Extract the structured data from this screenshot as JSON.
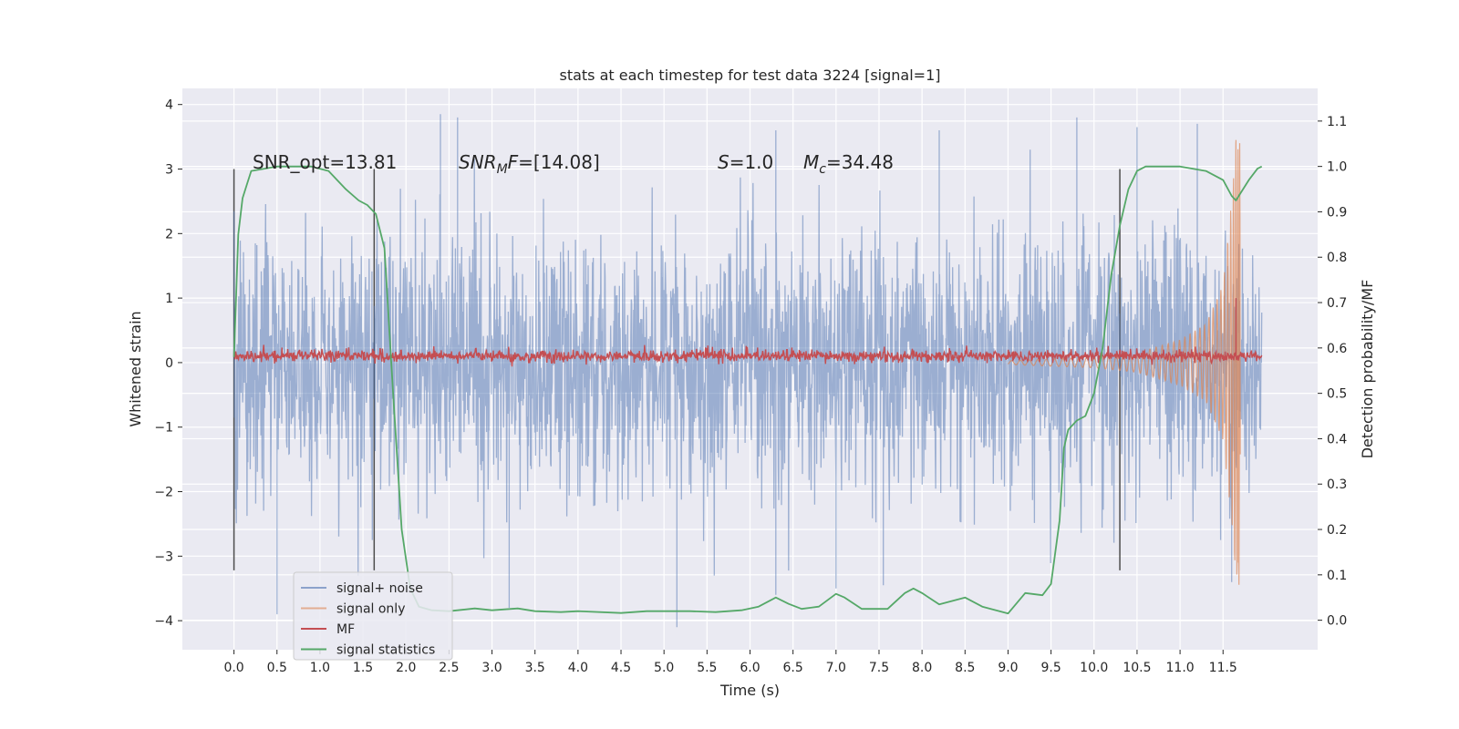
{
  "chart_data": {
    "type": "line",
    "title": "stats at each timestep for test data 3224 [signal=1]",
    "xlabel": "Time (s)",
    "ylabel": "Whitened strain",
    "y2label": "Detection probability/MF",
    "xlim": [
      -0.6,
      12.6
    ],
    "ylim": [
      -4.45,
      4.25
    ],
    "y2lim": [
      -0.065,
      1.172
    ],
    "x_ticks": [
      0.0,
      0.5,
      1.0,
      1.5,
      2.0,
      2.5,
      3.0,
      3.5,
      4.0,
      4.5,
      5.0,
      5.5,
      6.0,
      6.5,
      7.0,
      7.5,
      8.0,
      8.5,
      9.0,
      9.5,
      10.0,
      10.5,
      11.0,
      11.5
    ],
    "x_tick_labels": [
      "0.0",
      "0.5",
      "1.0",
      "1.5",
      "2.0",
      "2.5",
      "3.0",
      "3.5",
      "4.0",
      "4.5",
      "5.0",
      "5.5",
      "6.0",
      "6.5",
      "7.0",
      "7.5",
      "8.0",
      "8.5",
      "9.0",
      "9.5",
      "10.0",
      "10.5",
      "11.0",
      "11.5"
    ],
    "y_ticks": [
      -4,
      -3,
      -2,
      -1,
      0,
      1,
      2,
      3,
      4
    ],
    "y_tick_labels": [
      "−4",
      "−3",
      "−2",
      "−1",
      "0",
      "1",
      "2",
      "3",
      "4"
    ],
    "y2_ticks": [
      0.0,
      0.1,
      0.2,
      0.3,
      0.4,
      0.5,
      0.6,
      0.7,
      0.8,
      0.9,
      1.0,
      1.1
    ],
    "y2_tick_labels": [
      "0.0",
      "0.1",
      "0.2",
      "0.3",
      "0.4",
      "0.5",
      "0.6",
      "0.7",
      "0.8",
      "0.9",
      "1.0",
      "1.1"
    ],
    "grid": true,
    "legend_position": "lower-left",
    "annotations": {
      "snr_opt": "SNR_opt=13.81",
      "snr_mf_name": "SNR",
      "snr_mf_sub": "M",
      "snr_mf_after": "F=[14.08]",
      "s_name": "S",
      "s_value": "=1.0",
      "mc_name": "M",
      "mc_sub": "c",
      "mc_value": "=34.48"
    },
    "vertical_markers_x": [
      0.0,
      1.63,
      10.3
    ],
    "vertical_markers_range": [
      -3.22,
      3.0
    ],
    "series": [
      {
        "name": "signal+ noise",
        "color": "#4c72b0",
        "axis": "left",
        "description": "whitened noisy strain, dense, roughly within -2.5..2.5 with spikes to about +-3.8",
        "x_range": [
          0.0,
          11.95
        ],
        "envelope_upper": [
          [
            0.0,
            2.2
          ],
          [
            0.5,
            2.3
          ],
          [
            1.0,
            2.4
          ],
          [
            2.0,
            2.5
          ],
          [
            4.0,
            2.4
          ],
          [
            6.0,
            2.5
          ],
          [
            8.0,
            2.4
          ],
          [
            10.0,
            2.5
          ],
          [
            11.95,
            2.5
          ]
        ],
        "spikes": [
          [
            0.5,
            -3.9
          ],
          [
            2.4,
            3.85
          ],
          [
            2.6,
            3.8
          ],
          [
            3.2,
            -3.8
          ],
          [
            5.15,
            -4.1
          ],
          [
            6.3,
            -3.6
          ],
          [
            6.3,
            3.6
          ],
          [
            7.0,
            -3.5
          ],
          [
            7.55,
            -3.45
          ],
          [
            8.2,
            3.6
          ],
          [
            9.8,
            3.8
          ],
          [
            10.5,
            3.65
          ],
          [
            11.2,
            3.7
          ],
          [
            11.6,
            -3.4
          ]
        ]
      },
      {
        "name": "signal only",
        "color": "#dd8452",
        "axis": "left",
        "description": "chirp signal growing near the merger",
        "points": [
          [
            9.0,
            0.03
          ],
          [
            10.0,
            0.08
          ],
          [
            10.5,
            0.15
          ],
          [
            11.0,
            0.35
          ],
          [
            11.3,
            0.6
          ],
          [
            11.5,
            1.2
          ],
          [
            11.6,
            2.5
          ],
          [
            11.65,
            3.45
          ],
          [
            11.68,
            -3.1
          ],
          [
            11.72,
            0.0
          ]
        ]
      },
      {
        "name": "MF",
        "color": "#c44e52",
        "axis": "left",
        "description": "matched filter output, around 0.1 with small fluctuations and a spike of about 1.0 near 11.65",
        "baseline": 0.1,
        "x_range": [
          0.0,
          11.95
        ],
        "spike": [
          11.65,
          1.0
        ]
      },
      {
        "name": "signal statistics",
        "color": "#55a868",
        "axis": "right",
        "points": [
          [
            0.0,
            0.58
          ],
          [
            0.05,
            0.85
          ],
          [
            0.1,
            0.93
          ],
          [
            0.15,
            0.96
          ],
          [
            0.2,
            0.99
          ],
          [
            0.5,
            1.0
          ],
          [
            0.9,
            1.0
          ],
          [
            1.1,
            0.99
          ],
          [
            1.3,
            0.95
          ],
          [
            1.45,
            0.925
          ],
          [
            1.55,
            0.915
          ],
          [
            1.65,
            0.895
          ],
          [
            1.75,
            0.82
          ],
          [
            1.85,
            0.5
          ],
          [
            1.95,
            0.2
          ],
          [
            2.05,
            0.07
          ],
          [
            2.15,
            0.03
          ],
          [
            2.3,
            0.022
          ],
          [
            2.5,
            0.02
          ],
          [
            2.8,
            0.026
          ],
          [
            3.0,
            0.022
          ],
          [
            3.3,
            0.026
          ],
          [
            3.5,
            0.02
          ],
          [
            3.8,
            0.018
          ],
          [
            4.0,
            0.02
          ],
          [
            4.5,
            0.016
          ],
          [
            4.8,
            0.02
          ],
          [
            5.0,
            0.02
          ],
          [
            5.3,
            0.02
          ],
          [
            5.6,
            0.018
          ],
          [
            5.9,
            0.022
          ],
          [
            6.1,
            0.03
          ],
          [
            6.3,
            0.05
          ],
          [
            6.45,
            0.036
          ],
          [
            6.6,
            0.025
          ],
          [
            6.8,
            0.03
          ],
          [
            7.0,
            0.058
          ],
          [
            7.1,
            0.05
          ],
          [
            7.3,
            0.025
          ],
          [
            7.6,
            0.025
          ],
          [
            7.8,
            0.06
          ],
          [
            7.9,
            0.07
          ],
          [
            8.0,
            0.06
          ],
          [
            8.2,
            0.035
          ],
          [
            8.5,
            0.05
          ],
          [
            8.7,
            0.03
          ],
          [
            9.0,
            0.015
          ],
          [
            9.2,
            0.06
          ],
          [
            9.4,
            0.055
          ],
          [
            9.5,
            0.08
          ],
          [
            9.6,
            0.22
          ],
          [
            9.65,
            0.38
          ],
          [
            9.7,
            0.42
          ],
          [
            9.8,
            0.44
          ],
          [
            9.9,
            0.45
          ],
          [
            10.0,
            0.5
          ],
          [
            10.1,
            0.6
          ],
          [
            10.2,
            0.76
          ],
          [
            10.3,
            0.87
          ],
          [
            10.4,
            0.95
          ],
          [
            10.5,
            0.99
          ],
          [
            10.6,
            1.0
          ],
          [
            11.0,
            1.0
          ],
          [
            11.3,
            0.99
          ],
          [
            11.5,
            0.97
          ],
          [
            11.6,
            0.935
          ],
          [
            11.65,
            0.925
          ],
          [
            11.7,
            0.94
          ],
          [
            11.8,
            0.97
          ],
          [
            11.9,
            0.995
          ],
          [
            11.95,
            1.0
          ]
        ]
      }
    ]
  }
}
